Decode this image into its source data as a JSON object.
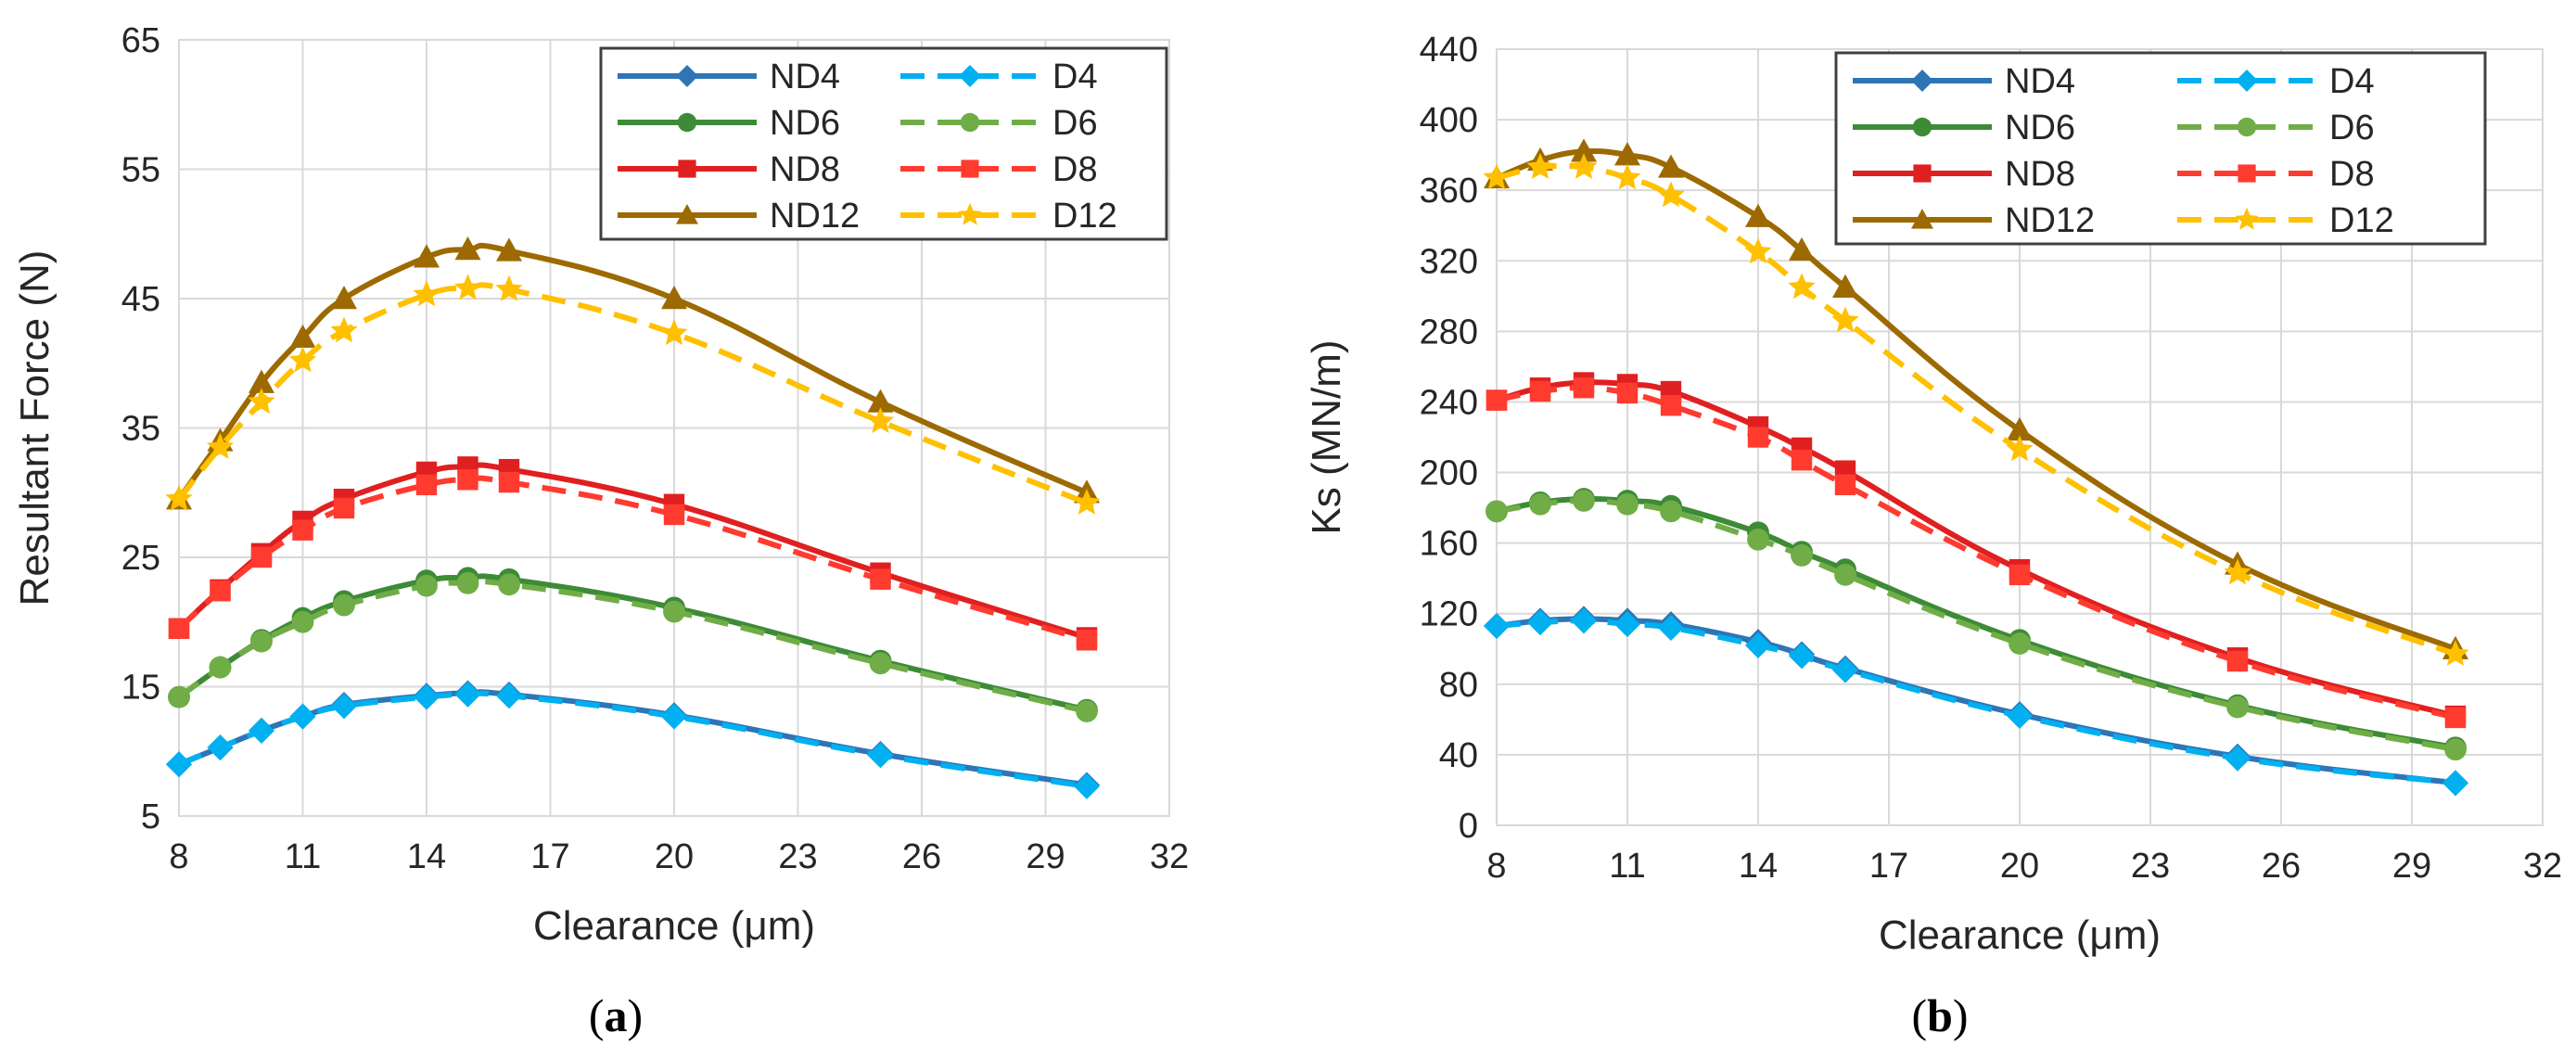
{
  "chart_data": [
    {
      "type": "line",
      "panel_label": "a",
      "xlabel": "Clearance (μm)",
      "ylabel": "Resultant Force (N)",
      "xlim": [
        8,
        32
      ],
      "ylim": [
        5,
        65
      ],
      "xticks": [
        "8",
        "11",
        "14",
        "17",
        "20",
        "23",
        "26",
        "29",
        "32"
      ],
      "yticks": [
        "5",
        "15",
        "25",
        "35",
        "45",
        "55",
        "65"
      ],
      "x": [
        8,
        9,
        10,
        11,
        12,
        14,
        15,
        16,
        20,
        25,
        30
      ],
      "legend_position": "top-right",
      "series": [
        {
          "name": "ND4",
          "color": "#2E75B6",
          "dash": "solid",
          "marker": "diamond",
          "values": [
            9.0,
            10.3,
            11.6,
            12.7,
            13.6,
            14.3,
            14.5,
            14.4,
            12.8,
            9.8,
            7.4
          ]
        },
        {
          "name": "D4",
          "color": "#00B0F0",
          "dash": "dashed",
          "marker": "diamond",
          "values": [
            9.0,
            10.3,
            11.6,
            12.7,
            13.5,
            14.2,
            14.4,
            14.3,
            12.7,
            9.7,
            7.3
          ]
        },
        {
          "name": "ND6",
          "color": "#3D8B37",
          "dash": "solid",
          "marker": "circle",
          "values": [
            14.2,
            16.5,
            18.6,
            20.3,
            21.6,
            23.2,
            23.4,
            23.3,
            21.1,
            17.0,
            13.2
          ]
        },
        {
          "name": "D6",
          "color": "#70AD47",
          "dash": "dashed",
          "marker": "circle",
          "values": [
            14.2,
            16.5,
            18.5,
            20.0,
            21.3,
            22.8,
            23.0,
            22.9,
            20.8,
            16.8,
            13.1
          ]
        },
        {
          "name": "ND8",
          "color": "#E02020",
          "dash": "solid",
          "marker": "square",
          "values": [
            19.5,
            22.5,
            25.3,
            27.8,
            29.5,
            31.6,
            32.0,
            31.8,
            29.1,
            23.8,
            18.8
          ]
        },
        {
          "name": "D8",
          "color": "#FF3B30",
          "dash": "dashed",
          "marker": "square",
          "values": [
            19.5,
            22.4,
            25.0,
            27.1,
            28.8,
            30.6,
            31.0,
            30.8,
            28.3,
            23.3,
            18.6
          ]
        },
        {
          "name": "ND12",
          "color": "#9C6A00",
          "dash": "solid",
          "marker": "triangle",
          "values": [
            29.5,
            34.0,
            38.5,
            42.0,
            45.0,
            48.2,
            48.8,
            48.7,
            45.0,
            37.0,
            30.0
          ]
        },
        {
          "name": "D12",
          "color": "#FFC000",
          "dash": "dashed",
          "marker": "star",
          "values": [
            29.5,
            33.5,
            37.0,
            40.2,
            42.5,
            45.3,
            45.8,
            45.7,
            42.3,
            35.5,
            29.2
          ]
        }
      ]
    },
    {
      "type": "line",
      "panel_label": "b",
      "xlabel": "Clearance (μm)",
      "ylabel": "Ks (MN/m)",
      "xlim": [
        8,
        32
      ],
      "ylim": [
        0,
        440
      ],
      "xticks": [
        "8",
        "11",
        "14",
        "17",
        "20",
        "23",
        "26",
        "29",
        "32"
      ],
      "yticks": [
        "0",
        "40",
        "80",
        "120",
        "160",
        "200",
        "240",
        "280",
        "320",
        "360",
        "400",
        "440"
      ],
      "x": [
        8,
        9,
        10,
        11,
        12,
        14,
        15,
        16,
        20,
        25,
        30
      ],
      "legend_position": "top-right",
      "series": [
        {
          "name": "ND4",
          "color": "#2E75B6",
          "dash": "solid",
          "marker": "diamond",
          "values": [
            113,
            116,
            117,
            116,
            114,
            104,
            97,
            89,
            63,
            39,
            24
          ]
        },
        {
          "name": "D4",
          "color": "#00B0F0",
          "dash": "dashed",
          "marker": "diamond",
          "values": [
            113,
            115,
            116,
            114,
            112,
            102,
            96,
            88,
            62,
            38,
            24
          ]
        },
        {
          "name": "ND6",
          "color": "#3D8B37",
          "dash": "solid",
          "marker": "circle",
          "values": [
            178,
            183,
            185,
            184,
            181,
            166,
            155,
            145,
            105,
            68,
            44
          ]
        },
        {
          "name": "D6",
          "color": "#70AD47",
          "dash": "dashed",
          "marker": "circle",
          "values": [
            178,
            182,
            184,
            182,
            178,
            162,
            153,
            142,
            103,
            67,
            43
          ]
        },
        {
          "name": "ND8",
          "color": "#E02020",
          "dash": "solid",
          "marker": "square",
          "values": [
            241,
            248,
            251,
            250,
            246,
            226,
            214,
            201,
            145,
            95,
            62
          ]
        },
        {
          "name": "D8",
          "color": "#FF3B30",
          "dash": "dashed",
          "marker": "square",
          "values": [
            241,
            246,
            248,
            245,
            238,
            220,
            207,
            193,
            142,
            93,
            61
          ]
        },
        {
          "name": "ND12",
          "color": "#9C6A00",
          "dash": "solid",
          "marker": "triangle",
          "values": [
            367,
            377,
            382,
            380,
            373,
            345,
            326,
            305,
            224,
            148,
            100
          ]
        },
        {
          "name": "D12",
          "color": "#FFC000",
          "dash": "dashed",
          "marker": "star",
          "values": [
            367,
            373,
            373,
            367,
            357,
            325,
            305,
            286,
            213,
            143,
            97
          ]
        }
      ]
    }
  ]
}
